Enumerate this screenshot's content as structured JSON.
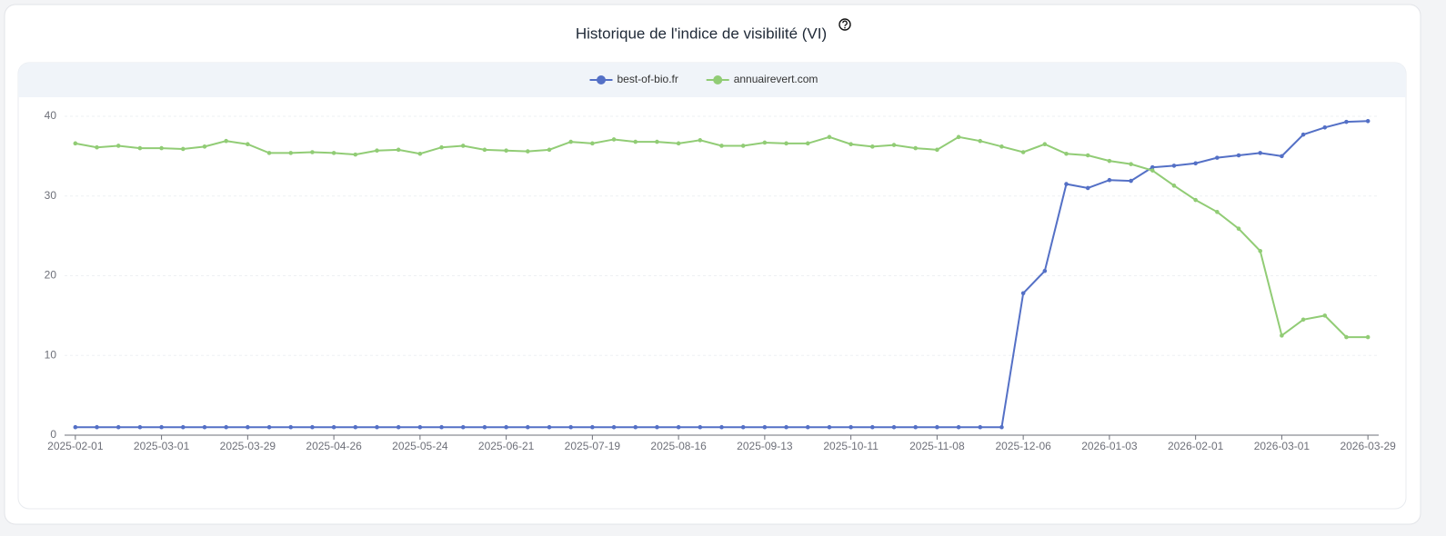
{
  "chart_data": {
    "type": "line",
    "title": "Historique de l'indice de visibilité (VI)",
    "categories": [
      "2025-02-01",
      null,
      null,
      null,
      "2025-03-01",
      null,
      null,
      null,
      "2025-03-29",
      null,
      null,
      null,
      "2025-04-26",
      null,
      null,
      null,
      "2025-05-24",
      null,
      null,
      null,
      "2025-06-21",
      null,
      null,
      null,
      "2025-07-19",
      null,
      null,
      null,
      "2025-08-16",
      null,
      null,
      null,
      "2025-09-13",
      null,
      null,
      null,
      "2025-10-11",
      null,
      null,
      null,
      "2025-11-08",
      null,
      null,
      null,
      "2025-12-06",
      null,
      null,
      null,
      "2026-01-03",
      null,
      null,
      null,
      "2026-02-01",
      null,
      null,
      null,
      "2026-03-01",
      null,
      null,
      null,
      "2026-03-29"
    ],
    "series": [
      {
        "name": "best-of-bio.fr",
        "color": "#5470c6",
        "values": [
          1,
          1,
          1,
          1,
          1,
          1,
          1,
          1,
          1,
          1,
          1,
          1,
          1,
          1,
          1,
          1,
          1,
          1,
          1,
          1,
          1,
          1,
          1,
          1,
          1,
          1,
          1,
          1,
          1,
          1,
          1,
          1,
          1,
          1,
          1,
          1,
          1,
          1,
          1,
          1,
          1,
          1,
          1,
          1,
          17.8,
          20.6,
          31.5,
          31,
          32,
          31.9,
          33.6,
          33.8,
          34.1,
          34.8,
          35.1,
          35.4,
          35,
          37.7,
          38.6,
          39.3,
          39.4
        ]
      },
      {
        "name": "annuairevert.com",
        "color": "#91cc75",
        "values": [
          36.6,
          36.1,
          36.3,
          36,
          36,
          35.9,
          36.2,
          36.9,
          36.5,
          35.4,
          35.4,
          35.5,
          35.4,
          35.2,
          35.7,
          35.8,
          35.3,
          36.1,
          36.3,
          35.8,
          35.7,
          35.6,
          35.8,
          36.8,
          36.6,
          37.1,
          36.8,
          36.8,
          36.6,
          37,
          36.3,
          36.3,
          36.7,
          36.6,
          36.6,
          37.4,
          36.5,
          36.2,
          36.4,
          36,
          35.8,
          37.4,
          36.9,
          36.2,
          35.5,
          36.5,
          35.3,
          35.1,
          34.4,
          34,
          33.2,
          31.3,
          29.5,
          28,
          25.9,
          23.1,
          12.5,
          14.5,
          15,
          12.3,
          12.3
        ]
      }
    ],
    "ylim": [
      0,
      40
    ],
    "yticks": [
      0,
      10,
      20,
      30,
      40
    ],
    "grid": true,
    "legend": "top"
  }
}
